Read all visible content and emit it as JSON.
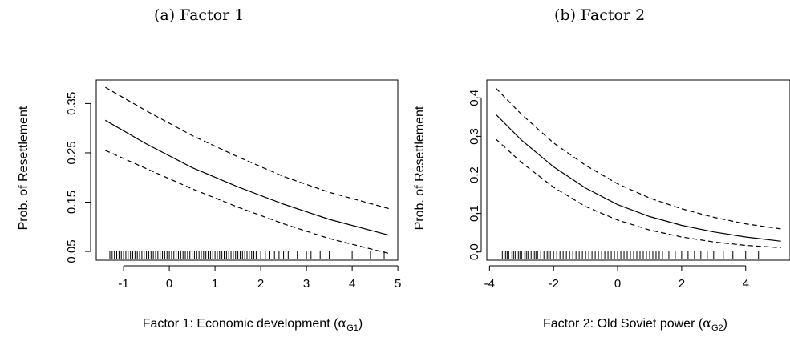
{
  "captions": {
    "a": "(a) Factor 1",
    "b": "(b) Factor 2"
  },
  "chart_data": [
    {
      "type": "line",
      "xlabel": "Factor 1: Economic development",
      "xlabel_symbol": "α",
      "xlabel_subscript": "G1",
      "ylabel": "Prob. of Resettlement",
      "xlim": [
        -1.4,
        4.8
      ],
      "ylim": [
        0.045,
        0.385
      ],
      "xticks": [
        -1,
        0,
        1,
        2,
        3,
        4,
        5
      ],
      "yticks": [
        0.05,
        0.15,
        0.25,
        0.35
      ],
      "ytick_labels": [
        "0.05",
        "0.15",
        "0.25",
        "0.35"
      ],
      "series": [
        {
          "style": "solid",
          "x": [
            -1.4,
            -0.5,
            0.5,
            1.5,
            2.5,
            3.5,
            4.8
          ],
          "y": [
            0.316,
            0.268,
            0.22,
            0.181,
            0.146,
            0.115,
            0.083
          ]
        },
        {
          "style": "dashed",
          "x": [
            -1.4,
            -0.5,
            0.5,
            1.5,
            2.5,
            3.5,
            4.8
          ],
          "y": [
            0.383,
            0.335,
            0.285,
            0.242,
            0.202,
            0.17,
            0.137
          ]
        },
        {
          "style": "dashed",
          "x": [
            -1.4,
            -0.5,
            0.5,
            1.5,
            2.5,
            3.5,
            4.8
          ],
          "y": [
            0.255,
            0.218,
            0.177,
            0.14,
            0.106,
            0.076,
            0.046
          ]
        }
      ],
      "rug": [
        -1.3,
        -1.25,
        -1.2,
        -1.15,
        -1.1,
        -1.05,
        -1.0,
        -0.95,
        -0.9,
        -0.85,
        -0.8,
        -0.75,
        -0.7,
        -0.65,
        -0.6,
        -0.55,
        -0.5,
        -0.45,
        -0.4,
        -0.35,
        -0.3,
        -0.25,
        -0.2,
        -0.15,
        -0.1,
        -0.05,
        0,
        0.05,
        0.1,
        0.15,
        0.2,
        0.25,
        0.3,
        0.35,
        0.4,
        0.45,
        0.5,
        0.55,
        0.6,
        0.65,
        0.7,
        0.75,
        0.8,
        0.85,
        0.9,
        0.95,
        1.0,
        1.05,
        1.1,
        1.15,
        1.2,
        1.25,
        1.3,
        1.35,
        1.4,
        1.45,
        1.5,
        1.55,
        1.6,
        1.65,
        1.7,
        1.75,
        1.8,
        1.85,
        1.9,
        2.0,
        2.1,
        2.2,
        2.3,
        2.4,
        2.5,
        2.6,
        2.8,
        3.0,
        3.1,
        3.3,
        3.5,
        4.0,
        4.4,
        4.7
      ]
    },
    {
      "type": "line",
      "xlabel": "Factor 2: Old Soviet power",
      "xlabel_symbol": "α",
      "xlabel_subscript": "G2",
      "ylabel": "Prob. of Resettlement",
      "xlim": [
        -3.8,
        5.1
      ],
      "ylim": [
        -0.005,
        0.43
      ],
      "xticks": [
        -4,
        -2,
        0,
        2,
        4
      ],
      "yticks": [
        0.0,
        0.1,
        0.2,
        0.3,
        0.4
      ],
      "ytick_labels": [
        "0.0",
        "0.1",
        "0.2",
        "0.3",
        "0.4"
      ],
      "series": [
        {
          "style": "solid",
          "x": [
            -3.8,
            -3.0,
            -2.0,
            -1.0,
            0.0,
            1.0,
            2.0,
            3.0,
            4.0,
            5.1
          ],
          "y": [
            0.357,
            0.29,
            0.221,
            0.166,
            0.123,
            0.092,
            0.069,
            0.052,
            0.039,
            0.028
          ]
        },
        {
          "style": "dashed",
          "x": [
            -3.8,
            -3.0,
            -2.0,
            -1.0,
            0.0,
            1.0,
            2.0,
            3.0,
            4.0,
            5.1
          ],
          "y": [
            0.425,
            0.357,
            0.283,
            0.225,
            0.177,
            0.14,
            0.112,
            0.09,
            0.073,
            0.06
          ]
        },
        {
          "style": "dashed",
          "x": [
            -3.8,
            -3.0,
            -2.0,
            -1.0,
            0.0,
            1.0,
            2.0,
            3.0,
            4.0,
            5.1
          ],
          "y": [
            0.293,
            0.232,
            0.168,
            0.118,
            0.083,
            0.057,
            0.039,
            0.026,
            0.017,
            0.011
          ]
        }
      ],
      "rug": [
        -3.6,
        -3.5,
        -3.45,
        -3.4,
        -3.3,
        -3.25,
        -3.2,
        -3.1,
        -3.05,
        -3.0,
        -2.9,
        -2.85,
        -2.8,
        -2.7,
        -2.6,
        -2.55,
        -2.5,
        -2.4,
        -2.3,
        -2.2,
        -2.15,
        -2.1,
        -2.0,
        -1.9,
        -1.8,
        -1.7,
        -1.6,
        -1.5,
        -1.4,
        -1.3,
        -1.2,
        -1.1,
        -1.0,
        -0.9,
        -0.8,
        -0.7,
        -0.6,
        -0.5,
        -0.4,
        -0.3,
        -0.2,
        -0.1,
        0,
        0.1,
        0.2,
        0.3,
        0.4,
        0.5,
        0.6,
        0.7,
        0.8,
        0.9,
        1.0,
        1.1,
        1.2,
        1.3,
        1.4,
        1.6,
        1.8,
        2.0,
        2.2,
        2.4,
        2.6,
        2.8,
        3.0,
        3.3,
        3.6,
        4.0,
        4.4
      ]
    }
  ]
}
